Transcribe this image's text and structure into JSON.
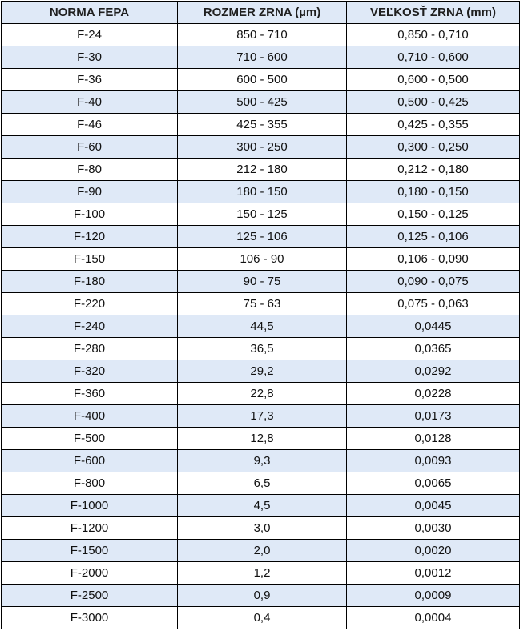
{
  "table": {
    "headers": [
      "NORMA FEPA",
      "ROZMER ZRNA (µm)",
      "VEĽKOSŤ ZRNA (mm)"
    ],
    "rows": [
      [
        "F-24",
        "850 - 710",
        "0,850 - 0,710"
      ],
      [
        "F-30",
        "710 - 600",
        "0,710 - 0,600"
      ],
      [
        "F-36",
        "600 - 500",
        "0,600 - 0,500"
      ],
      [
        "F-40",
        "500 - 425",
        "0,500 - 0,425"
      ],
      [
        "F-46",
        "425 - 355",
        "0,425 - 0,355"
      ],
      [
        "F-60",
        "300 - 250",
        "0,300 - 0,250"
      ],
      [
        "F-80",
        "212 - 180",
        "0,212 - 0,180"
      ],
      [
        "F-90",
        "180 - 150",
        "0,180 - 0,150"
      ],
      [
        "F-100",
        "150 - 125",
        "0,150 - 0,125"
      ],
      [
        "F-120",
        "125 - 106",
        "0,125 - 0,106"
      ],
      [
        "F-150",
        "106 - 90",
        "0,106 - 0,090"
      ],
      [
        "F-180",
        "90 - 75",
        "0,090 - 0,075"
      ],
      [
        "F-220",
        "75 - 63",
        "0,075 - 0,063"
      ],
      [
        "F-240",
        "44,5",
        "0,0445"
      ],
      [
        "F-280",
        "36,5",
        "0,0365"
      ],
      [
        "F-320",
        "29,2",
        "0,0292"
      ],
      [
        "F-360",
        "22,8",
        "0,0228"
      ],
      [
        "F-400",
        "17,3",
        "0,0173"
      ],
      [
        "F-500",
        "12,8",
        "0,0128"
      ],
      [
        "F-600",
        "9,3",
        "0,0093"
      ],
      [
        "F-800",
        "6,5",
        "0,0065"
      ],
      [
        "F-1000",
        "4,5",
        "0,0045"
      ],
      [
        "F-1200",
        "3,0",
        "0,0030"
      ],
      [
        "F-1500",
        "2,0",
        "0,0020"
      ],
      [
        "F-2000",
        "1,2",
        "0,0012"
      ],
      [
        "F-2500",
        "0,9",
        "0,0009"
      ],
      [
        "F-3000",
        "0,4",
        "0,0004"
      ]
    ]
  },
  "colors": {
    "header_background": "#dfe9f7",
    "stripe_background": "#dfe9f7",
    "border": "#000000"
  }
}
